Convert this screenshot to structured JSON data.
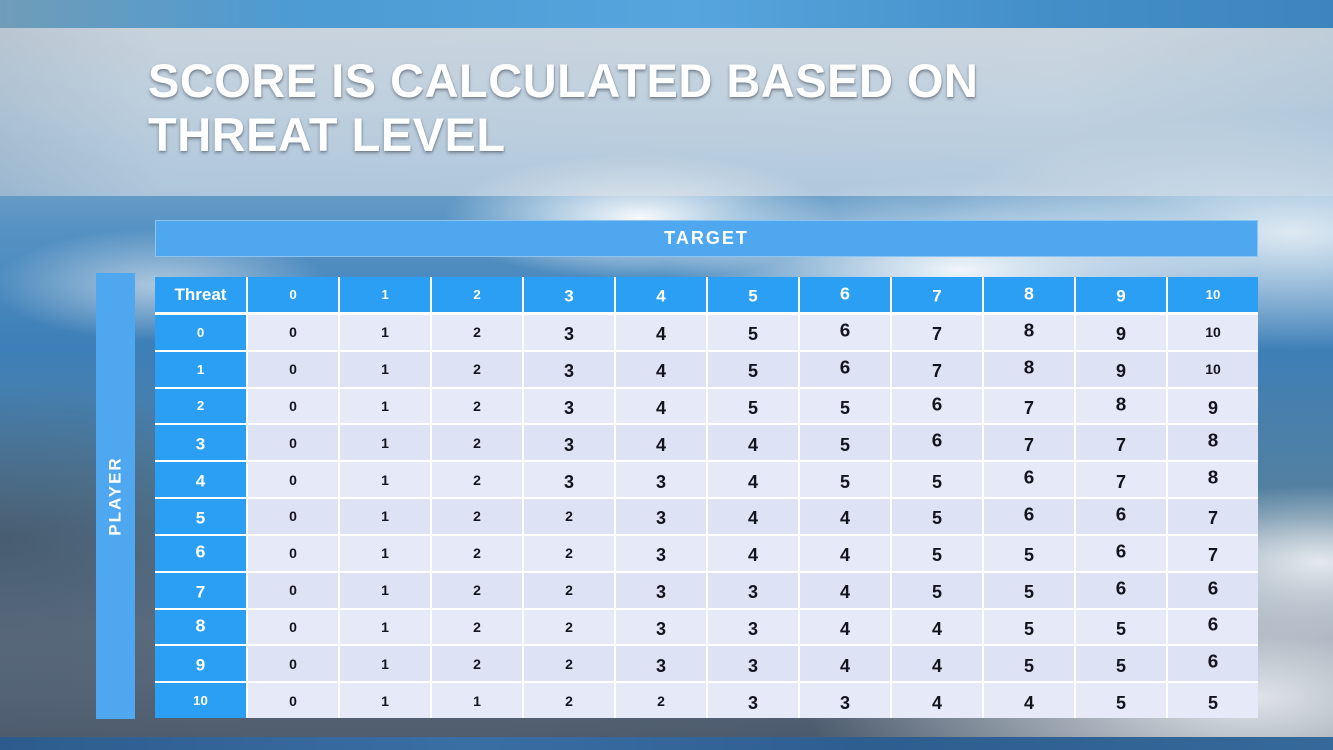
{
  "slide": {
    "title_line1": "SCORE IS CALCULATED BASED ON",
    "title_line2": "THREAT LEVEL",
    "target_label": "TARGET",
    "player_label": "PLAYER"
  },
  "chart_data": {
    "type": "table",
    "title": "Score is calculated based on threat level",
    "x_axis_label": "TARGET",
    "y_axis_label": "PLAYER",
    "corner_header": "Threat",
    "column_headers": [
      "0",
      "1",
      "2",
      "3",
      "4",
      "5",
      "6",
      "7",
      "8",
      "9",
      "10"
    ],
    "row_headers": [
      "0",
      "1",
      "2",
      "3",
      "4",
      "5",
      "6",
      "7",
      "8",
      "9",
      "10"
    ],
    "rows": [
      [
        0,
        1,
        2,
        3,
        4,
        5,
        6,
        7,
        8,
        9,
        10
      ],
      [
        0,
        1,
        2,
        3,
        4,
        5,
        6,
        7,
        8,
        9,
        10
      ],
      [
        0,
        1,
        2,
        3,
        4,
        5,
        5,
        6,
        7,
        8,
        9
      ],
      [
        0,
        1,
        2,
        3,
        4,
        4,
        5,
        6,
        7,
        7,
        8
      ],
      [
        0,
        1,
        2,
        3,
        3,
        4,
        5,
        5,
        6,
        7,
        8
      ],
      [
        0,
        1,
        2,
        2,
        3,
        4,
        4,
        5,
        6,
        6,
        7
      ],
      [
        0,
        1,
        2,
        2,
        3,
        4,
        4,
        5,
        5,
        6,
        7
      ],
      [
        0,
        1,
        2,
        2,
        3,
        3,
        4,
        5,
        5,
        6,
        6
      ],
      [
        0,
        1,
        2,
        2,
        3,
        3,
        4,
        4,
        5,
        5,
        6
      ],
      [
        0,
        1,
        2,
        2,
        3,
        3,
        4,
        4,
        5,
        5,
        6
      ],
      [
        0,
        1,
        1,
        2,
        2,
        3,
        3,
        4,
        4,
        5,
        5
      ]
    ]
  },
  "colors": {
    "table_header_blue": "#2B9FF3",
    "axis_band_blue": "#4FA7EF",
    "row_band_a": "#E6EAF8",
    "row_band_b": "#DDE2F4",
    "cell_text": "#14141E",
    "top_bar_blue": "#4D9BD3",
    "title_text": "#FFFFFF"
  }
}
